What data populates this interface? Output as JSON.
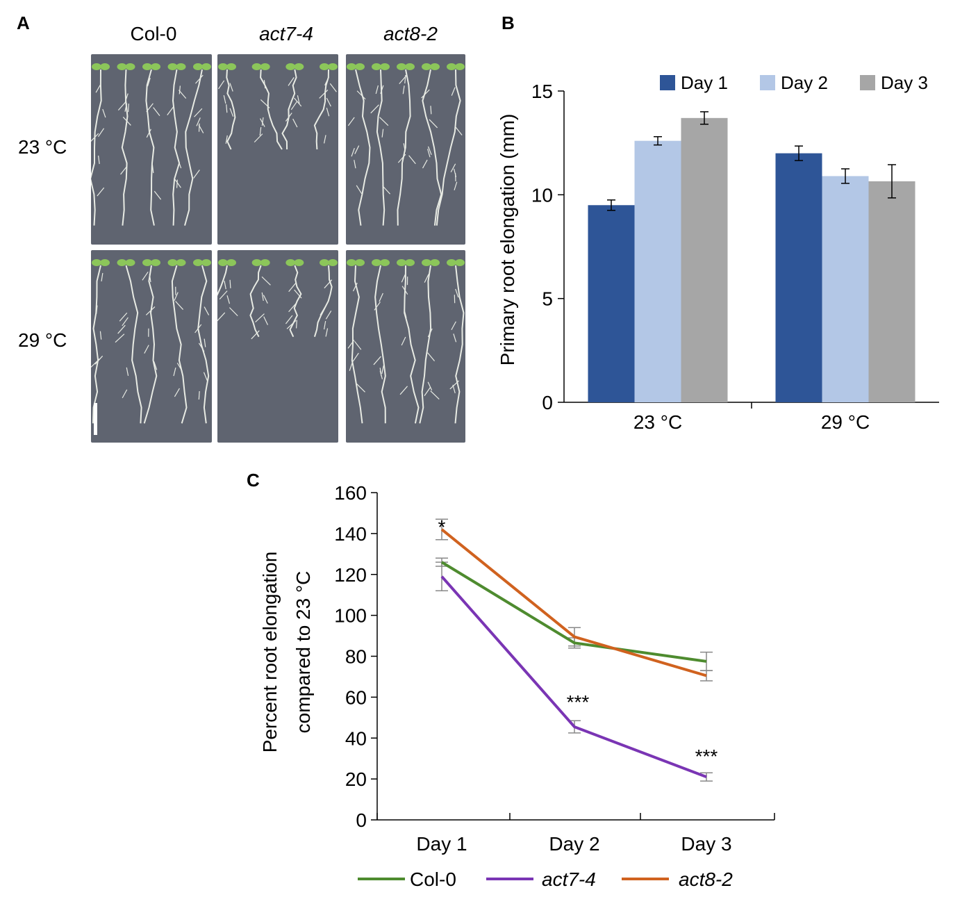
{
  "panel_a": {
    "label": "A",
    "columns": [
      "Col-0",
      "act7-4",
      "act8-2"
    ],
    "rows": [
      "23 °C",
      "29 °C"
    ]
  },
  "panel_b": {
    "label": "B"
  },
  "panel_c": {
    "label": "C"
  },
  "colors": {
    "day1": "#2e5597",
    "day2": "#b3c7e6",
    "day3": "#a6a6a6",
    "col0": "#4e8b2f",
    "act74": "#7a35b4",
    "act82": "#d0621f",
    "plate": "#5f6470",
    "root": "#e8ebe4",
    "leaf": "#8cc65a"
  },
  "chart_data": [
    {
      "type": "bar",
      "categories": [
        "23 °C",
        "29 °C"
      ],
      "series": [
        {
          "name": "Day 1",
          "values": [
            9.5,
            12.0
          ],
          "errors": [
            0.25,
            0.35
          ]
        },
        {
          "name": "Day 2",
          "values": [
            12.6,
            10.9
          ],
          "errors": [
            0.2,
            0.35
          ]
        },
        {
          "name": "Day 3",
          "values": [
            13.7,
            10.65
          ],
          "errors": [
            0.3,
            0.8
          ]
        }
      ],
      "ylabel": "Primary root elongation (mm)",
      "ylim": [
        0,
        15
      ],
      "yticks": [
        "0",
        "5",
        "10",
        "15"
      ],
      "legend": "top"
    },
    {
      "type": "line",
      "x": [
        "Day 1",
        "Day 2",
        "Day 3"
      ],
      "series": [
        {
          "name": "Col-0",
          "values": [
            126,
            86.5,
            77.5
          ],
          "errors": [
            2,
            2.5,
            4.5
          ]
        },
        {
          "name": "act7-4",
          "values": [
            119,
            45.5,
            21
          ],
          "errors": [
            7,
            3,
            2
          ]
        },
        {
          "name": "act8-2",
          "values": [
            142,
            89.5,
            70.5
          ],
          "errors": [
            5,
            4.5,
            2.5
          ]
        }
      ],
      "annotations": [
        {
          "x": "Day 1",
          "y": 142,
          "text": "*"
        },
        {
          "x": "Day 2",
          "y": 45.5,
          "text": "***"
        },
        {
          "x": "Day 3",
          "y": 21,
          "text": "***"
        }
      ],
      "ylabel_line1": "Percent root elongation",
      "ylabel_line2": "compared to 23 °C",
      "ylim": [
        0,
        160
      ],
      "yticks": [
        "0",
        "20",
        "40",
        "60",
        "80",
        "100",
        "120",
        "140",
        "160"
      ],
      "legend": "bottom"
    }
  ]
}
